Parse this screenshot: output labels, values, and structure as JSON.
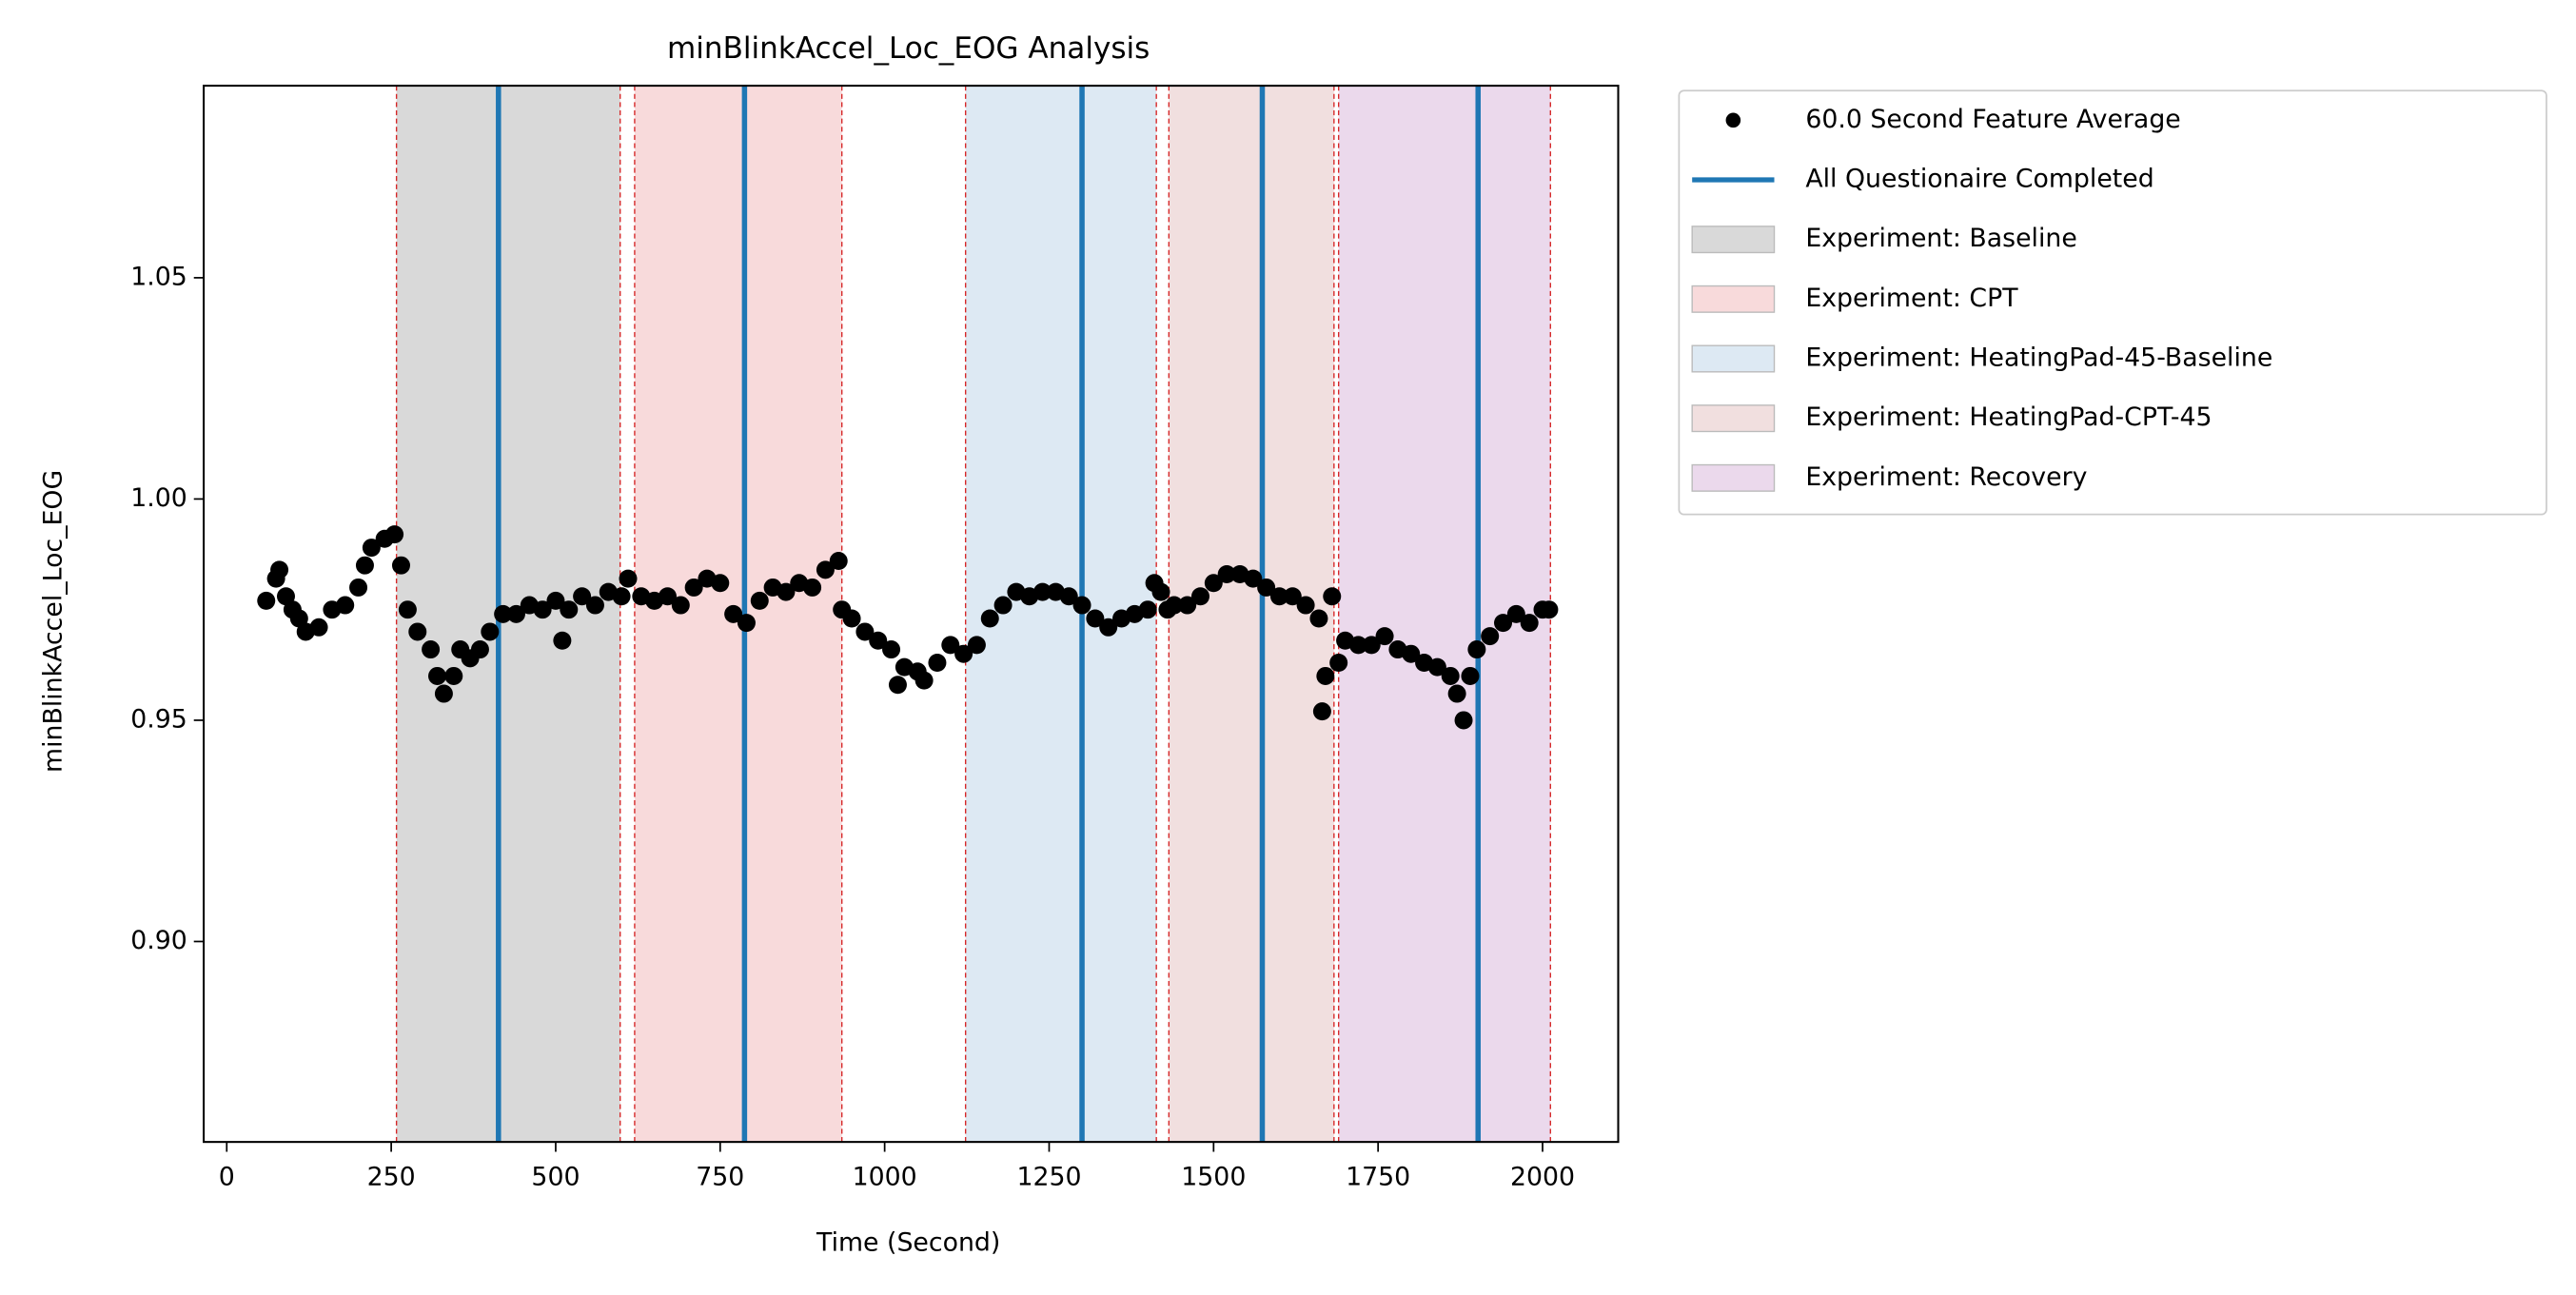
{
  "chart_data": {
    "type": "scatter",
    "title": "minBlinkAccel_Loc_EOG Analysis",
    "xlabel": "Time (Second)",
    "ylabel": "minBlinkAccel_Loc_EOG",
    "xlim": [
      -35,
      2115
    ],
    "ylim": [
      0.8547,
      1.0934
    ],
    "xticks": [
      0,
      250,
      500,
      750,
      1000,
      1250,
      1500,
      1750,
      2000
    ],
    "yticks": [
      {
        "value": 0.9,
        "label": "0.90"
      },
      0.95,
      {
        "value": 1.0,
        "label": "1.00"
      },
      1.05
    ],
    "series": [
      {
        "name": "60.0 Second Feature Average",
        "color": "#000000",
        "x": [
          60,
          75,
          80,
          90,
          100,
          110,
          120,
          140,
          160,
          180,
          200,
          210,
          220,
          240,
          255,
          265,
          275,
          290,
          310,
          320,
          330,
          345,
          355,
          370,
          385,
          400,
          420,
          440,
          460,
          480,
          500,
          510,
          520,
          540,
          560,
          580,
          600,
          610,
          630,
          650,
          670,
          690,
          710,
          730,
          750,
          770,
          790,
          810,
          830,
          850,
          870,
          890,
          910,
          930,
          935,
          950,
          970,
          990,
          1010,
          1020,
          1030,
          1050,
          1060,
          1080,
          1100,
          1120,
          1140,
          1160,
          1180,
          1200,
          1220,
          1240,
          1260,
          1280,
          1300,
          1320,
          1340,
          1360,
          1380,
          1400,
          1410,
          1420,
          1430,
          1440,
          1460,
          1480,
          1500,
          1520,
          1540,
          1560,
          1580,
          1600,
          1620,
          1640,
          1660,
          1665,
          1670,
          1680,
          1690,
          1700,
          1720,
          1740,
          1760,
          1780,
          1800,
          1820,
          1840,
          1860,
          1870,
          1880,
          1890,
          1900,
          1920,
          1940,
          1960,
          1980,
          2000,
          2010
        ],
        "values": [
          0.977,
          0.982,
          0.984,
          0.978,
          0.975,
          0.973,
          0.97,
          0.971,
          0.975,
          0.976,
          0.98,
          0.985,
          0.989,
          0.991,
          0.992,
          0.985,
          0.975,
          0.97,
          0.966,
          0.96,
          0.956,
          0.96,
          0.966,
          0.964,
          0.966,
          0.97,
          0.974,
          0.974,
          0.976,
          0.975,
          0.977,
          0.968,
          0.975,
          0.978,
          0.976,
          0.979,
          0.978,
          0.982,
          0.978,
          0.977,
          0.978,
          0.976,
          0.98,
          0.982,
          0.981,
          0.974,
          0.972,
          0.977,
          0.98,
          0.979,
          0.981,
          0.98,
          0.984,
          0.986,
          0.975,
          0.973,
          0.97,
          0.968,
          0.966,
          0.958,
          0.962,
          0.961,
          0.959,
          0.963,
          0.967,
          0.965,
          0.967,
          0.973,
          0.976,
          0.979,
          0.978,
          0.979,
          0.979,
          0.978,
          0.976,
          0.973,
          0.971,
          0.973,
          0.974,
          0.975,
          0.981,
          0.979,
          0.975,
          0.976,
          0.976,
          0.978,
          0.981,
          0.983,
          0.983,
          0.982,
          0.98,
          0.978,
          0.978,
          0.976,
          0.973,
          0.952,
          0.96,
          0.978,
          0.963,
          0.968,
          0.967,
          0.967,
          0.969,
          0.966,
          0.965,
          0.963,
          0.962,
          0.96,
          0.956,
          0.95,
          0.96,
          0.966,
          0.969,
          0.972,
          0.974,
          0.972,
          0.975,
          0.975
        ]
      }
    ],
    "vlines": {
      "name": "All Questionaire Completed",
      "color": "#1f77b4",
      "x": [
        413,
        787,
        1300,
        1574,
        1902
      ]
    },
    "spans": [
      {
        "name": "Experiment: Baseline",
        "start": 258,
        "end": 598,
        "color": "#d9d9d9"
      },
      {
        "name": "Experiment: CPT",
        "start": 620,
        "end": 935,
        "color": "#f8dadb"
      },
      {
        "name": "Experiment: HeatingPad-45-Baseline",
        "start": 1123,
        "end": 1413,
        "color": "#dde9f3"
      },
      {
        "name": "Experiment: HeatingPad-CPT-45",
        "start": 1432,
        "end": 1683,
        "color": "#f1dfdf"
      },
      {
        "name": "Experiment: Recovery",
        "start": 1690,
        "end": 2012,
        "color": "#ebd9ec"
      }
    ],
    "span_edge_color": "#d62728"
  }
}
